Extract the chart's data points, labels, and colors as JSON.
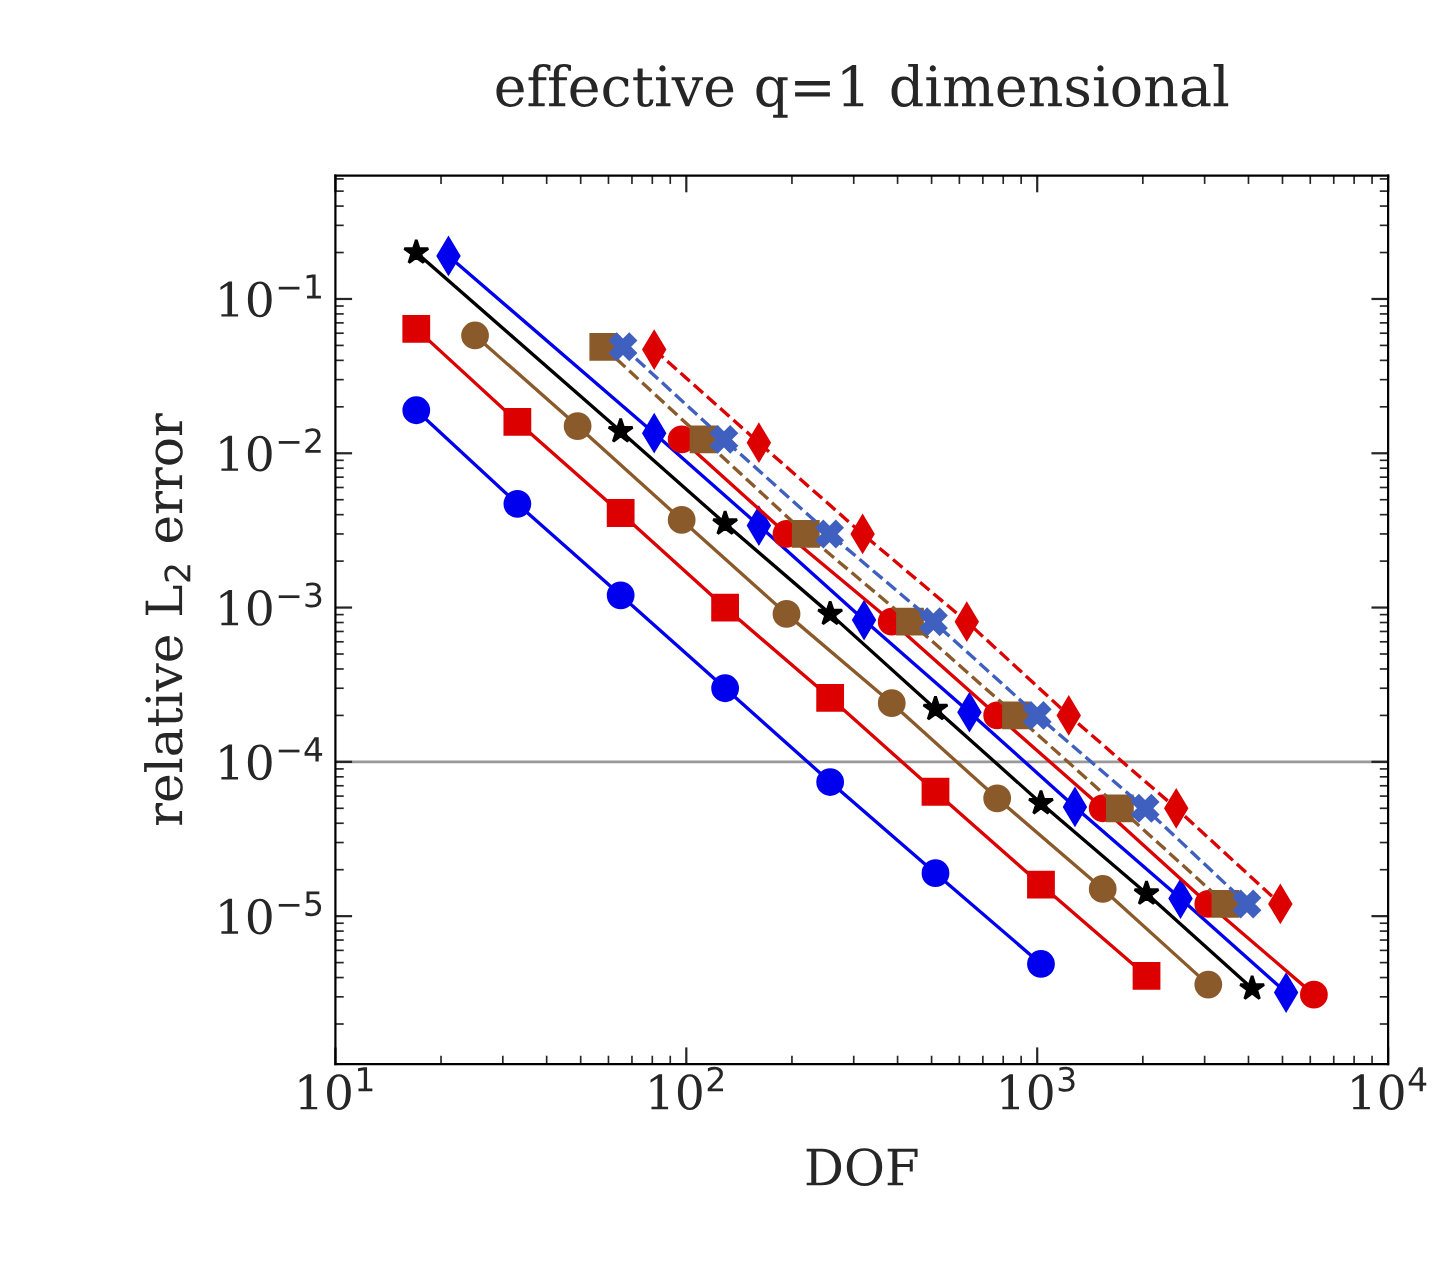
{
  "chart_data": {
    "type": "line",
    "title": "effective q=1 dimensional",
    "xlabel": "DOF",
    "ylabel": "relative L$_{2}$ error",
    "log": "xy",
    "grid": false,
    "xlim": [
      10,
      10000
    ],
    "ylim": [
      1.1e-06,
      0.63
    ],
    "xticks": [
      {
        "value": 10,
        "label": "10$^{1}$"
      },
      {
        "value": 100,
        "label": "10$^{2}$"
      },
      {
        "value": 1000,
        "label": "10$^{3}$"
      },
      {
        "value": 10000,
        "label": "10$^{4}$"
      }
    ],
    "yticks": [
      {
        "value": 1e-05,
        "label": "10$^{−5}$"
      },
      {
        "value": 0.0001,
        "label": "10$^{−4}$"
      },
      {
        "value": 0.001,
        "label": "10$^{−3}$"
      },
      {
        "value": 0.01,
        "label": "10$^{−2}$"
      },
      {
        "value": 0.1,
        "label": "10$^{−1}$"
      }
    ],
    "ref_lines": [
      {
        "axis": "y",
        "value": 0.0001,
        "color": "#999999"
      }
    ],
    "series": [
      {
        "color": "#0000ee",
        "marker": "circle",
        "line_style": "solid",
        "x": [
          17,
          33,
          65,
          129,
          257,
          513,
          1025
        ],
        "values": [
          0.019,
          0.0047,
          0.0012,
          0.0003,
          7.4e-05,
          1.9e-05,
          4.9e-06
        ]
      },
      {
        "color": "#dd0000",
        "marker": "square",
        "line_style": "solid",
        "x": [
          17,
          33,
          65,
          129,
          257,
          513,
          1025,
          2049
        ],
        "values": [
          0.064,
          0.016,
          0.0041,
          0.001,
          0.00026,
          6.4e-05,
          1.6e-05,
          4.1e-06
        ]
      },
      {
        "color": "#8b5a2b",
        "marker": "circle",
        "line_style": "solid",
        "x": [
          25,
          49,
          97,
          193,
          385,
          769,
          1537,
          3073
        ],
        "values": [
          0.058,
          0.015,
          0.0037,
          0.00091,
          0.00024,
          5.8e-05,
          1.5e-05,
          3.6e-06
        ]
      },
      {
        "color": "#000000",
        "marker": "star",
        "line_style": "solid",
        "x": [
          17,
          65,
          129,
          257,
          513,
          1025,
          2049,
          4097
        ],
        "values": [
          0.2,
          0.0139,
          0.0035,
          0.00091,
          0.00022,
          5.4e-05,
          1.4e-05,
          3.4e-06
        ]
      },
      {
        "color": "#0000ee",
        "marker": "diamond",
        "line_style": "solid",
        "x": [
          21,
          81,
          161,
          321,
          641,
          1281,
          2561,
          5121
        ],
        "values": [
          0.19,
          0.0135,
          0.0034,
          0.00083,
          0.00021,
          5.1e-05,
          1.3e-05,
          3.2e-06
        ]
      },
      {
        "color": "#dd0000",
        "marker": "circle",
        "line_style": "solid",
        "x": [
          97,
          193,
          385,
          769,
          1537,
          3073,
          6145
        ],
        "values": [
          0.0123,
          0.003,
          0.00081,
          0.0002,
          5e-05,
          1.2e-05,
          3.1e-06
        ]
      },
      {
        "color": "#8b5a2b",
        "marker": "square",
        "line_style": "dashed",
        "x": [
          58,
          112,
          219,
          434,
          870,
          1720,
          3440
        ],
        "values": [
          0.049,
          0.0123,
          0.003,
          0.00081,
          0.0002,
          5e-05,
          1.2e-05
        ]
      },
      {
        "color": "#4060c0",
        "marker": "cross",
        "line_style": "dashed",
        "x": [
          66,
          128,
          256,
          506,
          1000,
          2030,
          3960
        ],
        "values": [
          0.049,
          0.0123,
          0.003,
          0.00081,
          0.0002,
          5e-05,
          1.2e-05
        ]
      },
      {
        "color": "#dd0000",
        "marker": "diamond",
        "line_style": "dashed",
        "x": [
          81,
          161,
          318,
          630,
          1230,
          2490,
          4930
        ],
        "values": [
          0.047,
          0.0117,
          0.003,
          0.00081,
          0.0002,
          5e-05,
          1.2e-05
        ]
      }
    ]
  }
}
